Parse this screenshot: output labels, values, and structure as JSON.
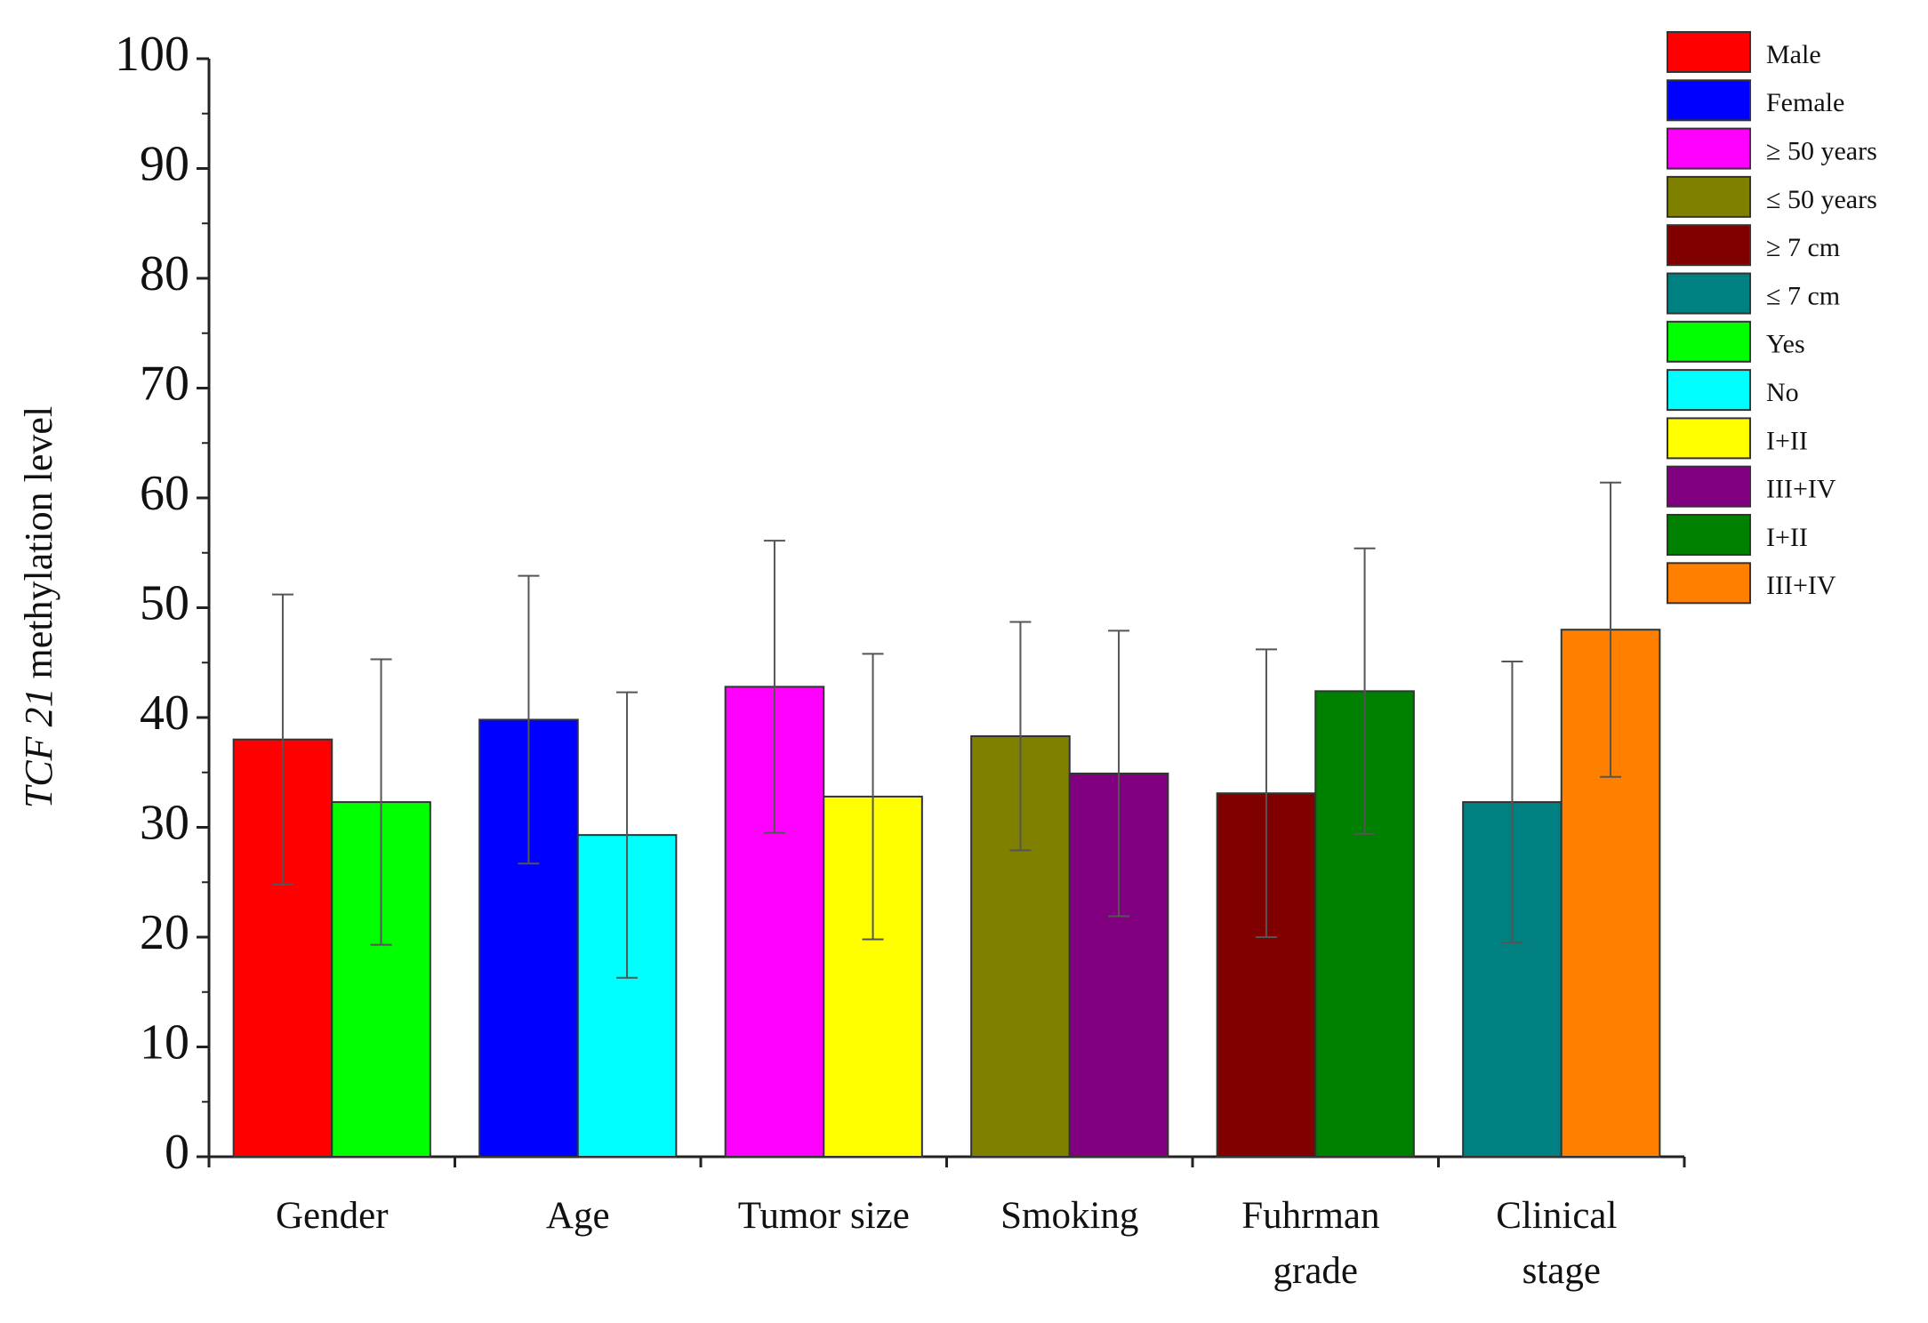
{
  "chart_data": {
    "type": "bar",
    "ylabel": [
      "TCF 21",
      "methylation level"
    ],
    "categories": [
      "Gender",
      "Age",
      "Tumor size",
      "Smoking",
      "Fuhrman grade",
      "Clinical stage"
    ],
    "ylim": [
      0,
      100
    ],
    "yticks": [
      0,
      10,
      20,
      30,
      40,
      50,
      60,
      70,
      80,
      90,
      100
    ],
    "yminorticks": [
      5,
      15,
      25,
      35,
      45,
      55,
      65,
      75,
      85,
      95
    ],
    "legend": "upper right",
    "series": [
      {
        "name": "Male",
        "color": "#ff0000",
        "values": [
          38,
          null,
          null,
          null,
          null,
          null
        ],
        "errors": [
          13.2,
          null,
          null,
          null,
          null,
          null
        ]
      },
      {
        "name": "Female",
        "color": "#0000ff",
        "values": [
          null,
          39.8,
          null,
          null,
          null,
          null
        ],
        "errors": [
          null,
          13.1,
          null,
          null,
          null,
          null
        ]
      },
      {
        "name": "≥ 50 years",
        "color": "#ff00ff",
        "values": [
          null,
          null,
          42.8,
          null,
          null,
          null
        ],
        "errors": [
          null,
          null,
          13.3,
          null,
          null,
          null
        ]
      },
      {
        "name": "≤ 50 years",
        "color": "#808000",
        "values": [
          null,
          null,
          null,
          38.3,
          null,
          null
        ],
        "errors": [
          null,
          null,
          null,
          10.4,
          null,
          null
        ]
      },
      {
        "name": "≥ 7 cm",
        "color": "#800000",
        "values": [
          null,
          null,
          null,
          null,
          33.1,
          null
        ],
        "errors": [
          null,
          null,
          null,
          null,
          13.1,
          null
        ]
      },
      {
        "name": "≤ 7 cm",
        "color": "#008080",
        "values": [
          null,
          null,
          null,
          null,
          null,
          32.3
        ],
        "errors": [
          null,
          null,
          null,
          null,
          null,
          12.8
        ]
      },
      {
        "name": "Yes",
        "color": "#00ff00",
        "values": [
          32.3,
          null,
          null,
          null,
          null,
          null
        ],
        "errors": [
          13,
          null,
          null,
          null,
          null,
          null
        ]
      },
      {
        "name": "No",
        "color": "#00ffff",
        "values": [
          null,
          29.3,
          null,
          null,
          null,
          null
        ],
        "errors": [
          null,
          13,
          null,
          null,
          null,
          null
        ]
      },
      {
        "name": "I+II",
        "color": "#ffff00",
        "values": [
          null,
          null,
          32.8,
          null,
          null,
          null
        ],
        "errors": [
          null,
          null,
          13,
          null,
          null,
          null
        ]
      },
      {
        "name": "III+IV",
        "color": "#800080",
        "values": [
          null,
          null,
          null,
          34.9,
          null,
          null
        ],
        "errors": [
          null,
          null,
          null,
          13,
          null,
          null
        ]
      },
      {
        "name": "I+II",
        "color": "#008000",
        "values": [
          null,
          null,
          null,
          null,
          42.4,
          null
        ],
        "errors": [
          null,
          null,
          null,
          null,
          13,
          null
        ]
      },
      {
        "name": "III+IV",
        "color": "#ff8000",
        "values": [
          null,
          null,
          null,
          null,
          null,
          48
        ],
        "errors": [
          null,
          null,
          null,
          null,
          null,
          13.4
        ]
      }
    ]
  }
}
